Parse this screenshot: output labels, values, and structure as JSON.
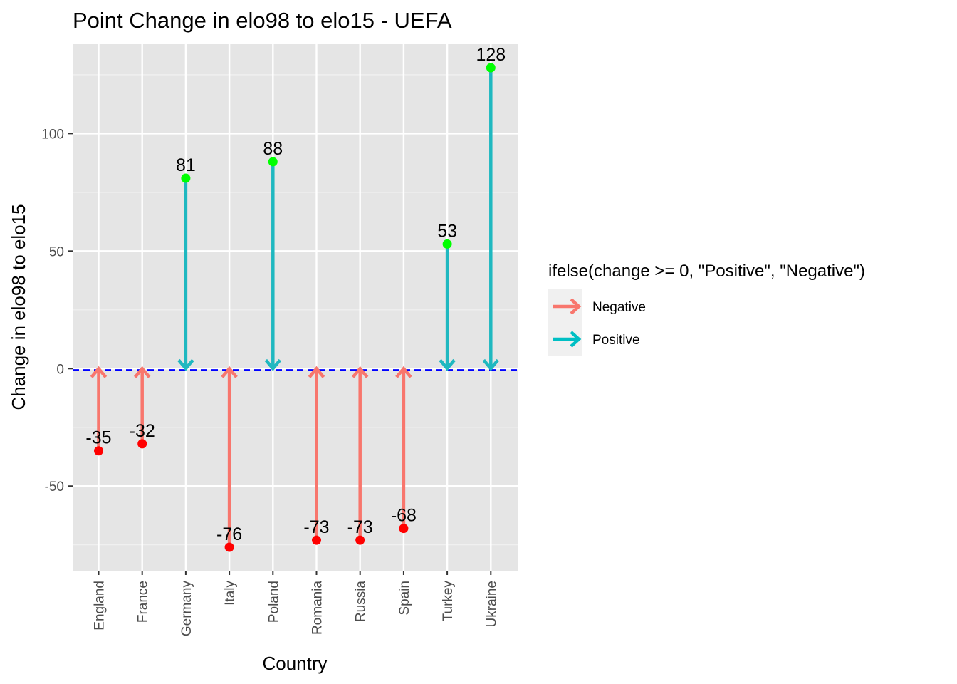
{
  "chart_data": {
    "type": "segment",
    "title": "Point Change in elo98 to elo15 - UEFA",
    "xlabel": "Country",
    "ylabel": "Change in elo98 to elo15",
    "categories": [
      "England",
      "France",
      "Germany",
      "Italy",
      "Poland",
      "Romania",
      "Russia",
      "Spain",
      "Turkey",
      "Ukraine"
    ],
    "values": [
      -35,
      -32,
      81,
      -76,
      88,
      -73,
      -73,
      -68,
      53,
      128
    ],
    "ylim": [
      -86,
      138
    ],
    "yticks": [
      -50,
      0,
      50,
      100
    ],
    "ytick_labels": [
      "-50",
      "0",
      "50",
      "100"
    ],
    "reference_line": {
      "y": 0,
      "color": "#0000ff",
      "style": "dashed"
    },
    "grid": true,
    "panel_background": "#e5e5e5",
    "legend": {
      "title": "ifelse(change >= 0, \"Positive\", \"Negative\")",
      "position": "right",
      "items": [
        {
          "label": "Negative",
          "color": "#f8766d"
        },
        {
          "label": "Positive",
          "color": "#00bfc4"
        }
      ]
    },
    "point_colors": {
      "negative": "#ff0000",
      "positive": "#00ff00"
    },
    "arrow_colors": {
      "negative": "#f8766d",
      "positive": "#1fb8c0"
    }
  }
}
